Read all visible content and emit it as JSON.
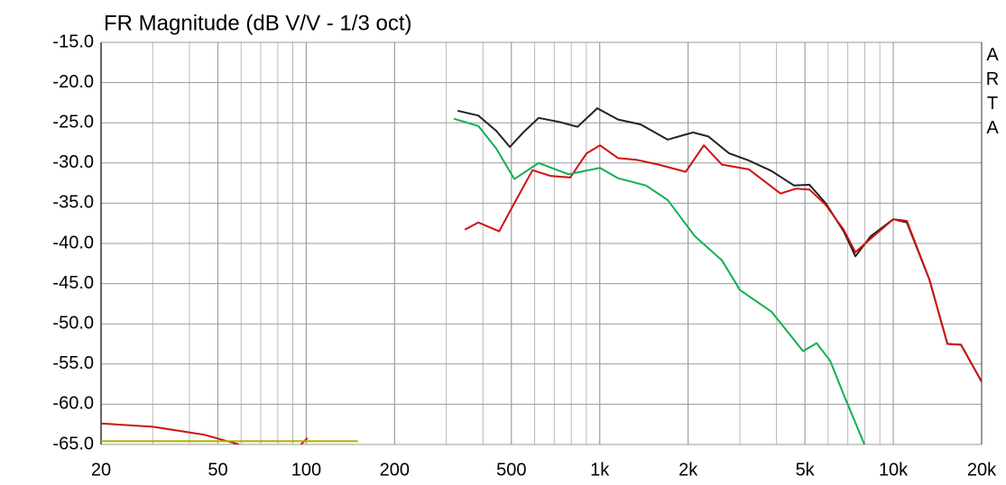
{
  "chart_data": {
    "type": "line",
    "title": "FR Magnitude (dB V/V - 1/3 oct)",
    "side_label": "ARTA",
    "x_scale": "log",
    "minor_grid": true,
    "grid": true,
    "xlim": [
      20,
      20000
    ],
    "ylim": [
      -65,
      -15
    ],
    "xticks": [
      20,
      50,
      100,
      200,
      500,
      {
        "value": 1000,
        "label": "1k"
      },
      {
        "value": 2000,
        "label": "2k"
      },
      {
        "value": 5000,
        "label": "5k"
      },
      {
        "value": 10000,
        "label": "10k"
      },
      {
        "value": 20000,
        "label": "20k"
      }
    ],
    "yticks": [
      {
        "value": -15,
        "label": "-15.0"
      },
      {
        "value": -20,
        "label": "-20.0"
      },
      {
        "value": -25,
        "label": "-25.0"
      },
      {
        "value": -30,
        "label": "-30.0"
      },
      {
        "value": -35,
        "label": "-35.0"
      },
      {
        "value": -40,
        "label": "-40.0"
      },
      {
        "value": -45,
        "label": "-45.0"
      },
      {
        "value": -50,
        "label": "-50.0"
      },
      {
        "value": -55,
        "label": "-55.0"
      },
      {
        "value": -60,
        "label": "-60.0"
      },
      {
        "value": -65,
        "label": "-65.0"
      }
    ],
    "series": [
      {
        "color": "#222222",
        "x": [
          328,
          386,
          444,
          494,
          549,
          619,
          729,
          840,
          981,
          1155,
          1378,
          1704,
          2078,
          2344,
          2758,
          3224,
          3846,
          4592,
          5178,
          5882,
          6776,
          7430,
          8380,
          10000,
          11124,
          13276,
          15292,
          17012,
          20000
        ],
        "values": [
          -23.5,
          -24.1,
          -26,
          -28,
          -26.2,
          -24.4,
          -24.9,
          -25.5,
          -23.2,
          -24.6,
          -25.2,
          -27.1,
          -26.2,
          -26.7,
          -28.8,
          -29.7,
          -31,
          -32.8,
          -32.7,
          -35,
          -38.5,
          -41.6,
          -39.1,
          -37,
          -37.4,
          -44.5,
          -52.5,
          -52.6,
          -57.2
        ]
      },
      {
        "color": "#d01010",
        "x": [
          347,
          386,
          454,
          512,
          590,
          679,
          793,
          902,
          1002,
          1155,
          1330,
          1588,
          1963,
          2262,
          2606,
          3224,
          4128,
          4656,
          5178,
          5882,
          6776,
          7430,
          8380,
          10000,
          11124,
          13276,
          15292,
          17012,
          20000
        ],
        "values": [
          -38.3,
          -37.4,
          -38.5,
          -35,
          -30.9,
          -31.6,
          -31.8,
          -28.8,
          -27.8,
          -29.4,
          -29.6,
          -30.2,
          -31.1,
          -27.8,
          -30.2,
          -30.8,
          -33.8,
          -33.2,
          -33.3,
          -35.2,
          -38.3,
          -41.1,
          -39.4,
          -37,
          -37.2,
          -44.5,
          -52.5,
          -52.6,
          -57.2
        ]
      },
      {
        "color": "#10b050",
        "x": [
          318,
          386,
          444,
          512,
          619,
          783,
          1002,
          1155,
          1438,
          1704,
          2108,
          2606,
          3004,
          3846,
          4928,
          5480,
          6094,
          6776,
          7976
        ],
        "values": [
          -24.5,
          -25.4,
          -28.2,
          -32,
          -30,
          -31.4,
          -30.6,
          -31.9,
          -32.8,
          -34.6,
          -39.1,
          -42.1,
          -45.8,
          -48.5,
          -53.4,
          -52.4,
          -54.6,
          -58.8,
          -65
        ]
      },
      {
        "color": "#d01010",
        "x": [
          20,
          30,
          45,
          59
        ],
        "values": [
          -62.4,
          -62.8,
          -63.8,
          -65
        ]
      },
      {
        "color": "#d01010",
        "x": [
          96,
          101
        ],
        "values": [
          -65,
          -64.2
        ]
      },
      {
        "color": "#b0b000",
        "x": [
          20,
          150
        ],
        "values": [
          -64.6,
          -64.6
        ]
      }
    ]
  }
}
